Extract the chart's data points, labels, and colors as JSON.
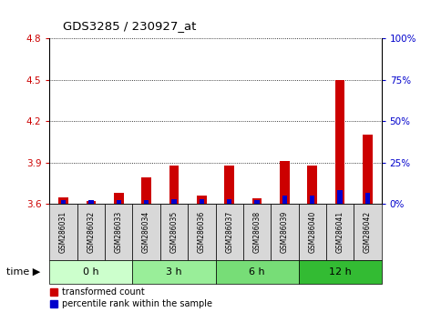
{
  "title": "GDS3285 / 230927_at",
  "samples": [
    "GSM286031",
    "GSM286032",
    "GSM286033",
    "GSM286034",
    "GSM286035",
    "GSM286036",
    "GSM286037",
    "GSM286038",
    "GSM286039",
    "GSM286040",
    "GSM286041",
    "GSM286042"
  ],
  "red_values": [
    3.65,
    3.62,
    3.68,
    3.79,
    3.88,
    3.66,
    3.88,
    3.64,
    3.91,
    3.88,
    4.5,
    4.1
  ],
  "blue_values": [
    3.63,
    3.63,
    3.63,
    3.63,
    3.635,
    3.635,
    3.635,
    3.63,
    3.66,
    3.66,
    3.7,
    3.68
  ],
  "ymin": 3.6,
  "ymax": 4.8,
  "yticks_left": [
    3.6,
    3.9,
    4.2,
    4.5,
    4.8
  ],
  "yticks_right": [
    0,
    25,
    50,
    75,
    100
  ],
  "groups": [
    {
      "label": "0 h",
      "start": 0,
      "end": 3
    },
    {
      "label": "3 h",
      "start": 3,
      "end": 6
    },
    {
      "label": "6 h",
      "start": 6,
      "end": 9
    },
    {
      "label": "12 h",
      "start": 9,
      "end": 12
    }
  ],
  "group_colors": [
    "#ccffcc",
    "#99ee99",
    "#77dd77",
    "#33bb33"
  ],
  "red_color": "#cc0000",
  "blue_color": "#0000cc",
  "base": 3.6,
  "legend_red": "transformed count",
  "legend_blue": "percentile rank within the sample",
  "time_label": "time",
  "bg_plot": "#ffffff",
  "bg_sample": "#d8d8d8",
  "left_tick_color": "#cc0000",
  "right_tick_color": "#0000cc"
}
